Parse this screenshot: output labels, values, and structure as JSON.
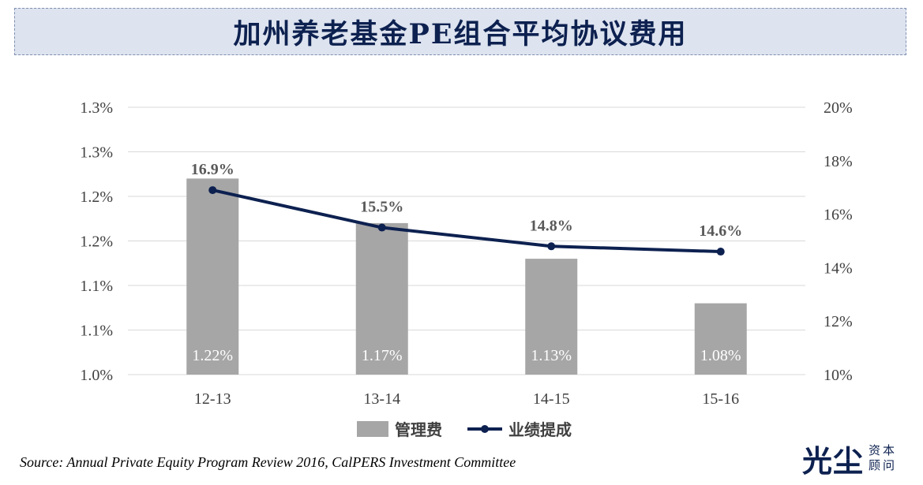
{
  "title": "加州养老基金PE组合平均协议费用",
  "source": "Source: Annual Private Equity Program Review 2016, CalPERS Investment Committee",
  "brand": {
    "main": "光尘",
    "sub1": "资本",
    "sub2": "顾问"
  },
  "colors": {
    "bar": "#a6a6a6",
    "line": "#0d2150",
    "grid": "#d9d9d9",
    "axis_text": "#404040"
  },
  "chart_data": {
    "type": "bar+line",
    "categories": [
      "12-13",
      "13-14",
      "14-15",
      "15-16"
    ],
    "series": [
      {
        "name": "管理费",
        "type": "bar",
        "axis": "left",
        "values": [
          1.22,
          1.17,
          1.13,
          1.08
        ],
        "labels": [
          "1.22%",
          "1.17%",
          "1.13%",
          "1.08%"
        ]
      },
      {
        "name": "业绩提成",
        "type": "line",
        "axis": "right",
        "values": [
          16.9,
          15.5,
          14.8,
          14.6
        ],
        "labels": [
          "16.9%",
          "15.5%",
          "14.8%",
          "14.6%"
        ]
      }
    ],
    "y_left": {
      "range": [
        1.0,
        1.3
      ],
      "ticks": [
        "1.0%",
        "1.1%",
        "1.1%",
        "1.2%",
        "1.2%",
        "1.3%",
        "1.3%"
      ]
    },
    "y_right": {
      "range": [
        10,
        20
      ],
      "ticks": [
        "10%",
        "12%",
        "14%",
        "16%",
        "18%",
        "20%"
      ]
    },
    "grid": true,
    "legend_position": "bottom-center"
  }
}
